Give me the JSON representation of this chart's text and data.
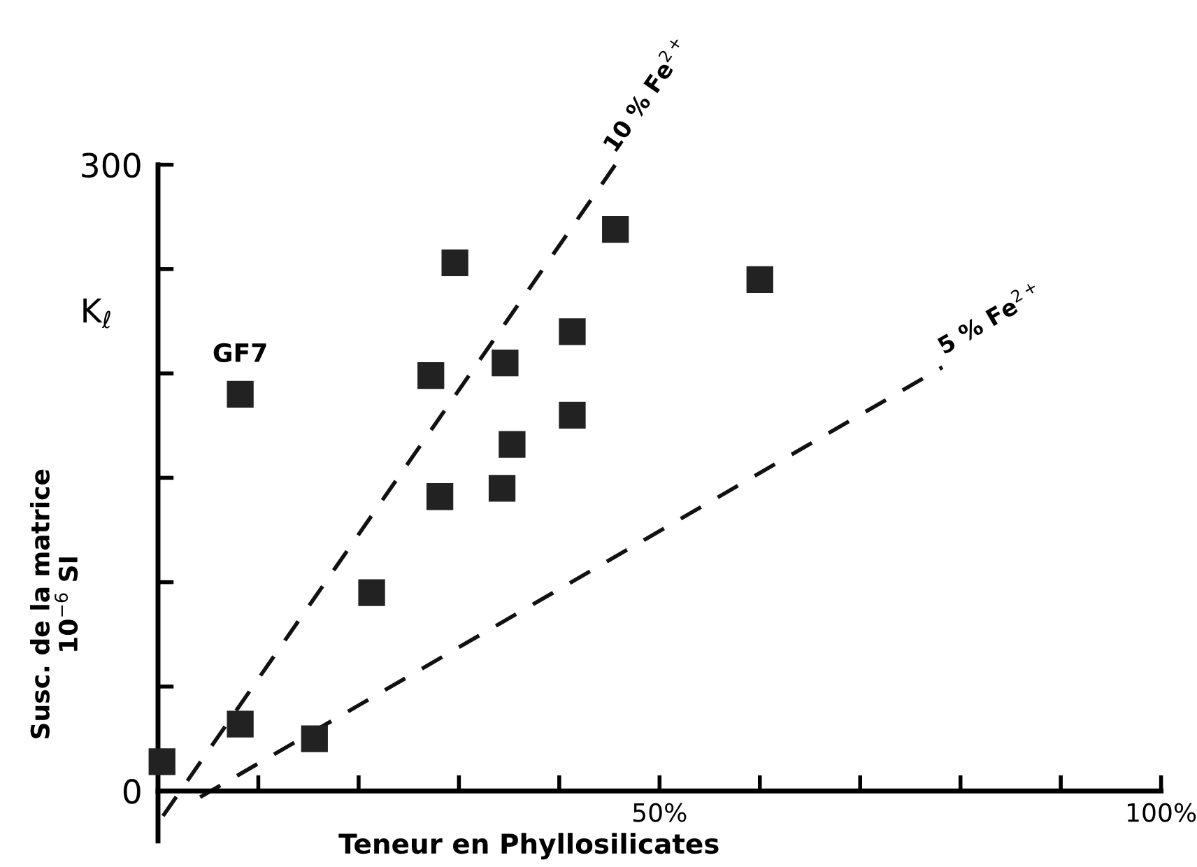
{
  "chart_data": {
    "type": "scatter",
    "xlabel": "Teneur en Phyllosilicates",
    "ylabel": "Susc. de la matrice\n10$^{−6}$ SI",
    "xlim": [
      0,
      100
    ],
    "ylim": [
      -24,
      300
    ],
    "xticks": [
      {
        "value": 10,
        "label": null
      },
      {
        "value": 20,
        "label": null
      },
      {
        "value": 30,
        "label": null
      },
      {
        "value": 40,
        "label": null
      },
      {
        "value": 50,
        "label": "50%"
      },
      {
        "value": 60,
        "label": null
      },
      {
        "value": 70,
        "label": null
      },
      {
        "value": 80,
        "label": null
      },
      {
        "value": 90,
        "label": null
      },
      {
        "value": 100,
        "label": "100%"
      }
    ],
    "yticks": [
      0,
      {
        "value": 50,
        "label": null
      },
      {
        "value": 100,
        "label": null
      },
      {
        "value": 150,
        "label": null
      },
      {
        "value": 200,
        "label": null
      },
      {
        "value": 250,
        "label": null
      },
      300
    ],
    "annotations": [
      "K$_{ℓ}$",
      {
        "text": "GF7",
        "x": 8.2,
        "y": 190
      }
    ],
    "series": [
      {
        "marker": "square",
        "color": "#222222",
        "x": [
          0.4,
          8.2,
          15.6,
          21.3,
          8.2,
          27.2,
          28.1,
          29.6,
          34.6,
          34.3,
          35.3,
          41.3,
          41.3,
          45.6,
          60
        ],
        "values": [
          14,
          32,
          25,
          95,
          190,
          199,
          141,
          253,
          205,
          145,
          166,
          220,
          180,
          269,
          245
        ]
      },
      {
        "type": "line",
        "name": "10 % Fe$^{2+}$",
        "line_style": "dashed",
        "color": "#111111",
        "x": [
          0.5,
          45.6
        ],
        "values": [
          -12,
          300
        ]
      },
      {
        "type": "line",
        "name": "5 % Fe$^{2+}$",
        "line_style": "dashed",
        "color": "#111111",
        "x": [
          4.2,
          78.2
        ],
        "values": [
          -3,
          203
        ]
      }
    ]
  }
}
